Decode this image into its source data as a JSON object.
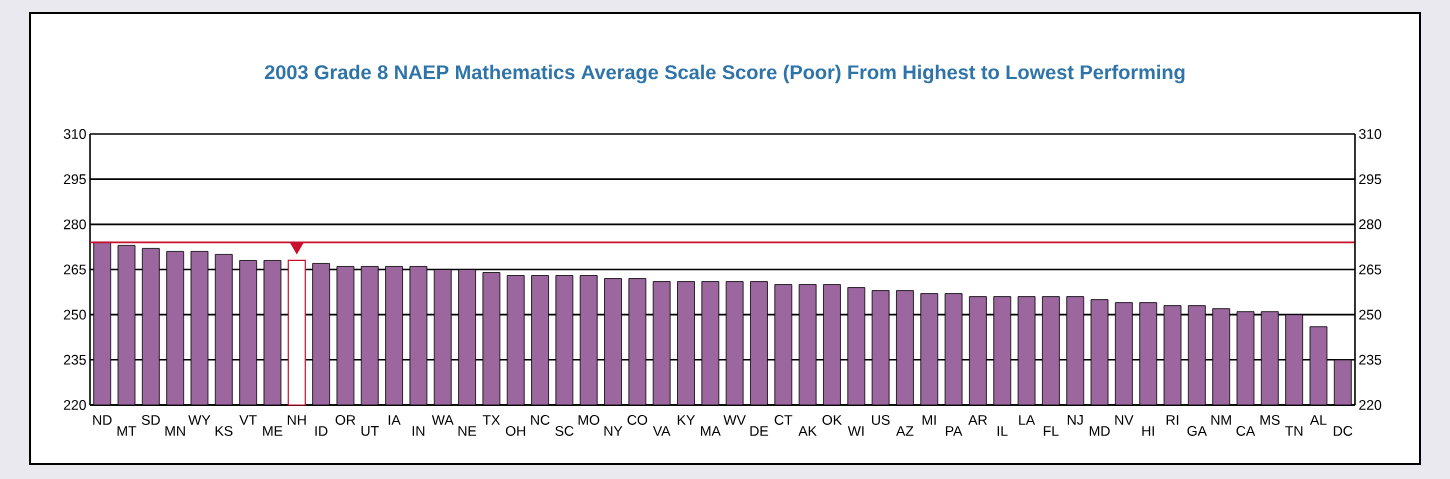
{
  "chart_data": {
    "type": "bar",
    "title": "2003 Grade 8 NAEP Mathematics Average Scale Score (Poor) From Highest to Lowest Performing",
    "categories": [
      "ND",
      "MT",
      "SD",
      "MN",
      "WY",
      "KS",
      "VT",
      "ME",
      "NH",
      "ID",
      "OR",
      "UT",
      "IA",
      "IN",
      "WA",
      "NE",
      "TX",
      "OH",
      "NC",
      "SC",
      "MO",
      "NY",
      "CO",
      "VA",
      "KY",
      "MA",
      "WV",
      "DE",
      "CT",
      "AK",
      "OK",
      "WI",
      "US",
      "AZ",
      "MI",
      "PA",
      "AR",
      "IL",
      "LA",
      "FL",
      "NJ",
      "MD",
      "NV",
      "HI",
      "RI",
      "GA",
      "NM",
      "CA",
      "MS",
      "TN",
      "AL",
      "DC"
    ],
    "values": [
      274,
      273,
      272,
      271,
      271,
      270,
      268,
      268,
      268,
      267,
      266,
      266,
      266,
      266,
      265,
      265,
      264,
      263,
      263,
      263,
      263,
      262,
      262,
      261,
      261,
      261,
      261,
      261,
      260,
      260,
      260,
      259,
      258,
      258,
      257,
      257,
      256,
      256,
      256,
      256,
      256,
      255,
      254,
      254,
      253,
      253,
      252,
      251,
      251,
      250,
      246,
      235
    ],
    "color": "#9b679e",
    "colors": [
      "#9b679e",
      "#9b679e",
      "#9b679e",
      "#9b679e",
      "#9b679e",
      "#9b679e",
      "#9b679e",
      "#9b679e",
      "#c8102e",
      "#9b679e",
      "#9b679e",
      "#9b679e",
      "#9b679e",
      "#9b679e",
      "#9b679e",
      "#9b679e",
      "#9b679e",
      "#9b679e",
      "#9b679e",
      "#9b679e",
      "#9b679e",
      "#9b679e",
      "#9b679e",
      "#9b679e",
      "#9b679e",
      "#9b679e",
      "#9b679e",
      "#9b679e",
      "#9b679e",
      "#9b679e",
      "#9b679e",
      "#9b679e",
      "#9b679e",
      "#9b679e",
      "#9b679e",
      "#9b679e",
      "#9b679e",
      "#9b679e",
      "#9b679e",
      "#9b679e",
      "#9b679e",
      "#9b679e",
      "#9b679e",
      "#9b679e",
      "#9b679e",
      "#9b679e",
      "#9b679e",
      "#9b679e",
      "#9b679e",
      "#9b679e",
      "#9b679e",
      "#9b679e"
    ],
    "ylim": [
      220,
      310
    ],
    "yticks": [
      220,
      235,
      250,
      265,
      280,
      295,
      310
    ],
    "y2lim": [
      220,
      310
    ],
    "y2ticks": [
      220,
      235,
      250,
      265,
      280,
      295,
      310
    ],
    "grid": "y",
    "ref_lines": [
      {
        "axis": "y",
        "value": 274,
        "color": "#c8102e"
      }
    ]
  }
}
